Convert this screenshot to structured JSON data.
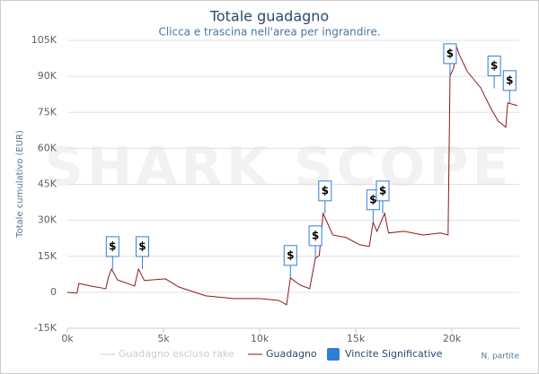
{
  "chart_data": {
    "type": "line",
    "title": "Totale guadagno",
    "subtitle": "Clicca e trascina nell'area per ingrandire.",
    "watermark": "SHARK SCOPE",
    "y_label": "Totale cumulativo (EUR)",
    "x_label": "N. partite",
    "xlim": [
      0,
      23500
    ],
    "ylim": [
      -15000,
      105000
    ],
    "xticks": [
      {
        "value": 0,
        "label": "0k"
      },
      {
        "value": 5000,
        "label": "5k"
      },
      {
        "value": 10000,
        "label": "10k"
      },
      {
        "value": 15000,
        "label": "15k"
      },
      {
        "value": 20000,
        "label": "20k"
      }
    ],
    "yticks": [
      {
        "value": -15000,
        "label": "-15K"
      },
      {
        "value": 0,
        "label": "0"
      },
      {
        "value": 15000,
        "label": "15K"
      },
      {
        "value": 30000,
        "label": "30K"
      },
      {
        "value": 45000,
        "label": "45K"
      },
      {
        "value": 60000,
        "label": "60K"
      },
      {
        "value": 75000,
        "label": "75K"
      },
      {
        "value": 90000,
        "label": "90K"
      },
      {
        "value": 105000,
        "label": "105K"
      }
    ],
    "grid": true,
    "hidden_series": {
      "name": "Guadagno escluso rake",
      "color": "#cccccc"
    },
    "series": [
      {
        "name": "Guadagno",
        "color": "#8b1a1a",
        "x": [
          0,
          500,
          600,
          1200,
          2000,
          2150,
          2300,
          2600,
          3500,
          3700,
          4000,
          5100,
          5800,
          7200,
          8600,
          10000,
          11000,
          11400,
          11600,
          12100,
          12600,
          12900,
          13100,
          13300,
          13800,
          14500,
          15200,
          15700,
          15900,
          16100,
          16500,
          16700,
          17500,
          18500,
          19400,
          19800,
          19900,
          20100,
          20200,
          20400,
          20800,
          21500,
          22000,
          22400,
          22800,
          22900,
          23400
        ],
        "values": [
          0,
          -400,
          3700,
          2600,
          1500,
          6700,
          9700,
          5200,
          2600,
          9700,
          4900,
          5600,
          2200,
          -1500,
          -2600,
          -2600,
          -3400,
          -5200,
          6000,
          3000,
          1500,
          14200,
          15300,
          32900,
          23900,
          22800,
          19800,
          19100,
          29200,
          25400,
          32900,
          24700,
          25400,
          23900,
          24700,
          23900,
          90100,
          93800,
          103200,
          98700,
          92000,
          85200,
          77000,
          71400,
          68800,
          78900,
          77800
        ]
      },
      {
        "name": "Vincite Significative",
        "color": "#2f7ed8",
        "label": "$",
        "x": [
          2350,
          3900,
          11600,
          12900,
          13400,
          15900,
          16400,
          19900,
          22200,
          23000
        ],
        "values": [
          9700,
          9700,
          6000,
          14200,
          32900,
          29200,
          32900,
          90100,
          85000,
          78900
        ]
      }
    ]
  }
}
